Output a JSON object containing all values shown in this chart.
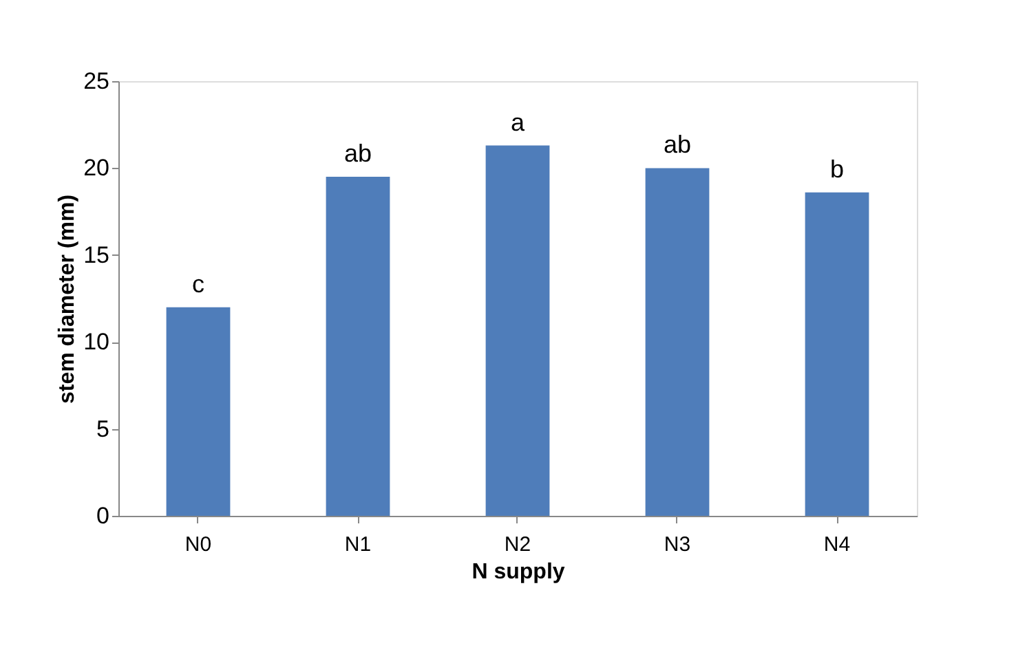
{
  "chart_data": {
    "type": "bar",
    "xlabel": "N supply",
    "ylabel": "stem diameter (mm)",
    "categories": [
      "N0",
      "N1",
      "N2",
      "N3",
      "N4"
    ],
    "values": [
      12.0,
      19.5,
      21.3,
      20.0,
      18.6
    ],
    "color": "#4f7dba",
    "ylim": [
      0,
      25
    ],
    "yticks": [
      0,
      5,
      10,
      15,
      20,
      25
    ],
    "grid": false,
    "annotations": [
      {
        "text": "c",
        "x": "N0",
        "y": 12.0
      },
      {
        "text": "ab",
        "x": "N1",
        "y": 19.5
      },
      {
        "text": "a",
        "x": "N2",
        "y": 21.3
      },
      {
        "text": "ab",
        "x": "N3",
        "y": 20.0
      },
      {
        "text": "b",
        "x": "N4",
        "y": 18.6
      }
    ]
  }
}
